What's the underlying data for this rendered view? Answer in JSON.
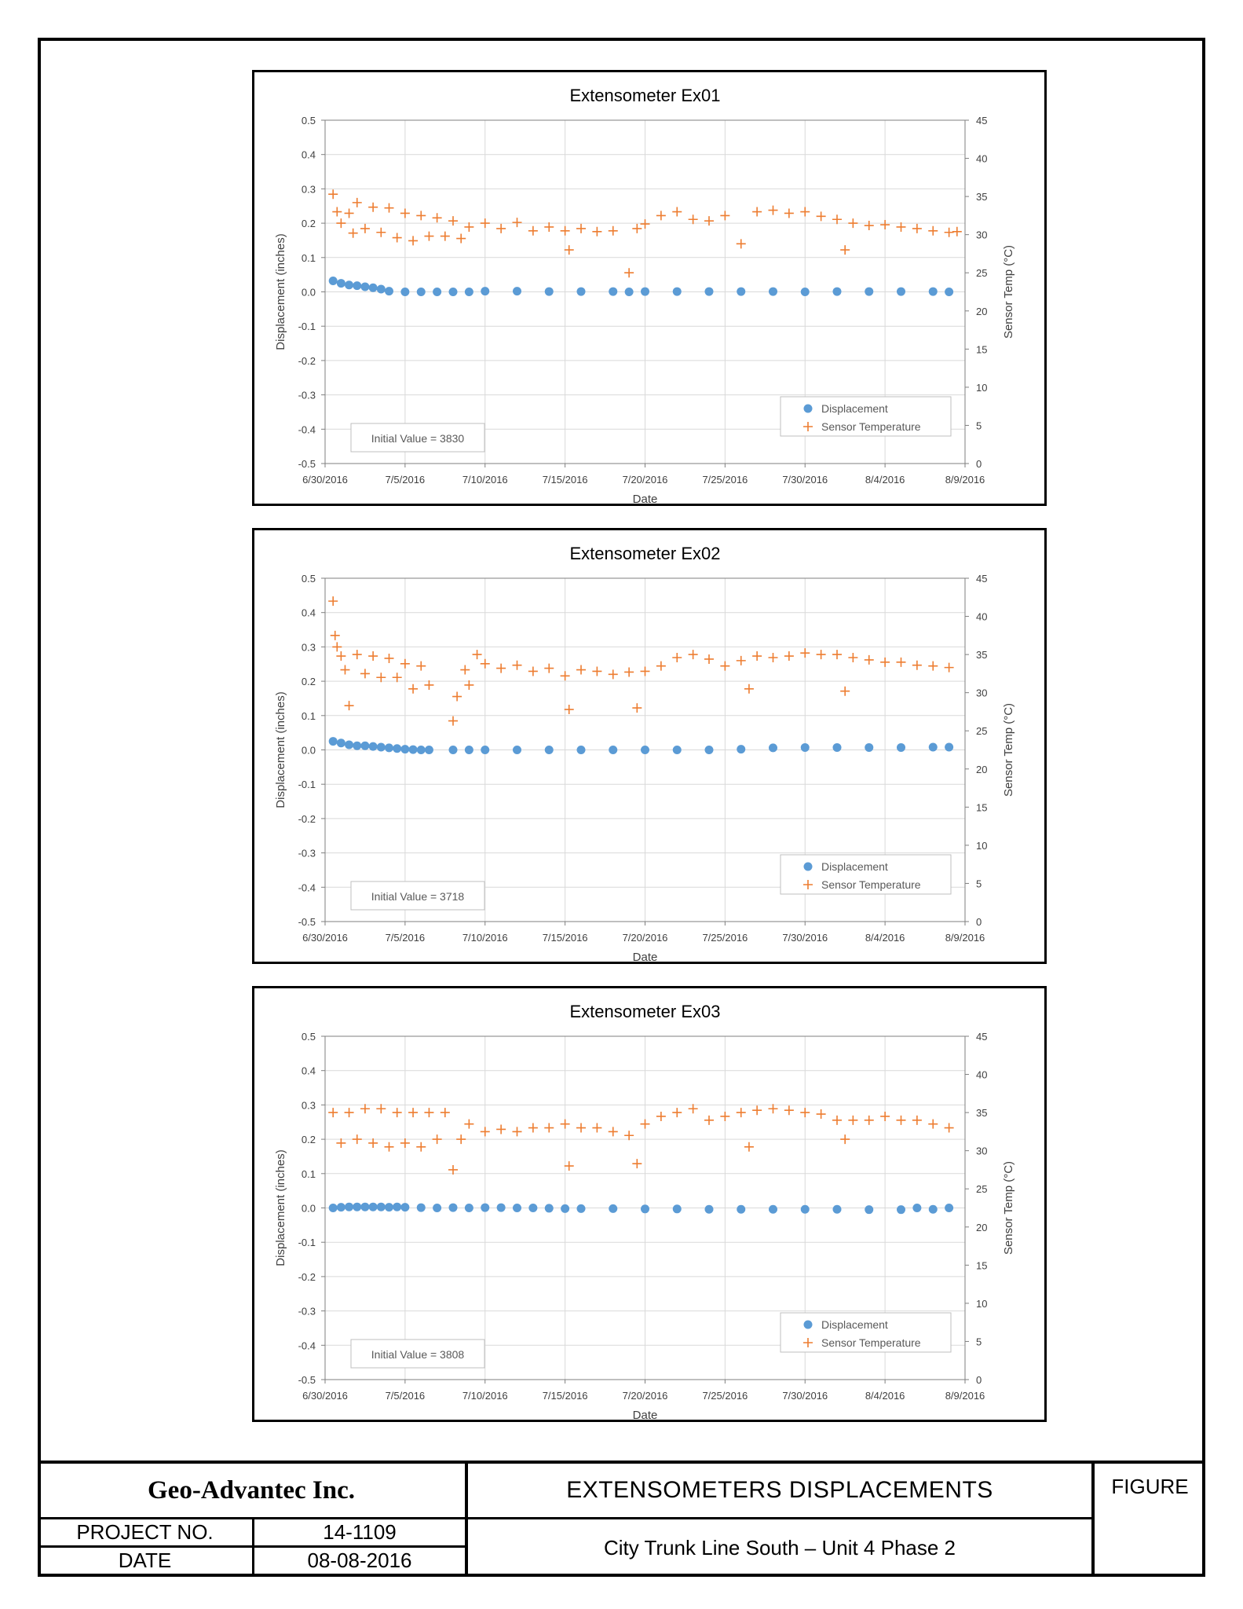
{
  "page": {
    "company": "Geo-Advantec Inc.",
    "project_no_label": "PROJECT NO.",
    "project_no": "14-1109",
    "date_label": "DATE",
    "date": "08-08-2016",
    "drawing_title": "EXTENSOMETERS DISPLACEMENTS",
    "figure_label": "FIGURE",
    "subtitle": "City Trunk Line South – Unit 4 Phase 2"
  },
  "colors": {
    "displacement": "#5B9BD5",
    "temperature": "#ED7D31",
    "grid": "#D9D9D9",
    "axis": "#7F7F7F"
  },
  "chart_data": [
    {
      "type": "scatter",
      "title": "Extensometer Ex01",
      "xlabel": "Date",
      "ylabel": "Displacement (inches)",
      "y2label": "Sensor Temp (°C)",
      "x_ticks": [
        "6/30/2016",
        "7/5/2016",
        "7/10/2016",
        "7/15/2016",
        "7/20/2016",
        "7/25/2016",
        "7/30/2016",
        "8/4/2016",
        "8/9/2016"
      ],
      "xlim": [
        "6/30/2016",
        "8/9/2016"
      ],
      "ylim": [
        -0.5,
        0.5
      ],
      "y_ticks": [
        "0.5",
        "0.4",
        "0.3",
        "0.2",
        "0.1",
        "0.0",
        "-0.1",
        "-0.2",
        "-0.3",
        "-0.4",
        "-0.5"
      ],
      "y2lim": [
        0,
        45
      ],
      "y2_ticks": [
        "45",
        "40",
        "35",
        "30",
        "25",
        "20",
        "15",
        "10",
        "5",
        "0"
      ],
      "grid": true,
      "legend_position": "bottom-right",
      "annotation": "Initial Value = 3830",
      "series": [
        {
          "name": "Displacement",
          "axis": "left",
          "marker": "circle",
          "x": [
            "6/30/2016 12:00",
            "7/1/2016 00:00",
            "7/1/2016 12:00",
            "7/2/2016",
            "7/2/2016 12:00",
            "7/3/2016",
            "7/3/2016 12:00",
            "7/4/2016",
            "7/5/2016",
            "7/6/2016",
            "7/7/2016",
            "7/8/2016",
            "7/9/2016",
            "7/10/2016",
            "7/12/2016",
            "7/14/2016",
            "7/16/2016",
            "7/18/2016",
            "7/19/2016",
            "7/20/2016",
            "7/22/2016",
            "7/24/2016",
            "7/26/2016",
            "7/28/2016",
            "7/30/2016",
            "8/1/2016",
            "8/3/2016",
            "8/5/2016",
            "8/7/2016",
            "8/8/2016"
          ],
          "y": [
            0.032,
            0.025,
            0.02,
            0.018,
            0.015,
            0.012,
            0.008,
            0.002,
            0.0,
            0.0,
            0.0,
            0.0,
            0.0,
            0.002,
            0.002,
            0.001,
            0.001,
            0.001,
            0.0,
            0.001,
            0.001,
            0.001,
            0.001,
            0.001,
            0.0,
            0.001,
            0.001,
            0.001,
            0.001,
            0.0
          ]
        },
        {
          "name": "Sensor Temperature",
          "axis": "right",
          "marker": "plus",
          "x": [
            "6/30/2016 12:00",
            "6/30/2016 18:00",
            "7/1/2016 00:00",
            "7/1/2016 12:00",
            "7/1/2016 18:00",
            "7/2/2016",
            "7/2/2016 12:00",
            "7/3/2016",
            "7/3/2016 12:00",
            "7/4/2016",
            "7/4/2016 12:00",
            "7/5/2016",
            "7/5/2016 12:00",
            "7/6/2016",
            "7/6/2016 12:00",
            "7/7/2016",
            "7/7/2016 12:00",
            "7/8/2016",
            "7/8/2016 12:00",
            "7/9/2016",
            "7/10/2016",
            "7/11/2016",
            "7/12/2016",
            "7/13/2016",
            "7/14/2016",
            "7/15/2016",
            "7/15/2016 06:00",
            "7/16/2016",
            "7/17/2016",
            "7/18/2016",
            "7/19/2016",
            "7/19/2016 12:00",
            "7/20/2016",
            "7/21/2016",
            "7/22/2016",
            "7/23/2016",
            "7/24/2016",
            "7/25/2016",
            "7/26/2016",
            "7/27/2016",
            "7/28/2016",
            "7/29/2016",
            "7/30/2016",
            "7/31/2016",
            "8/1/2016",
            "8/1/2016 12:00",
            "8/2/2016",
            "8/3/2016",
            "8/4/2016",
            "8/5/2016",
            "8/6/2016",
            "8/7/2016",
            "8/8/2016",
            "8/8/2016 12:00"
          ],
          "y": [
            35.3,
            33.0,
            31.5,
            32.8,
            30.2,
            34.2,
            30.8,
            33.6,
            30.3,
            33.5,
            29.6,
            32.8,
            29.2,
            32.5,
            29.8,
            32.2,
            29.8,
            31.8,
            29.5,
            31.0,
            31.5,
            30.8,
            31.6,
            30.5,
            31.0,
            30.5,
            28.0,
            30.8,
            30.4,
            30.5,
            25.0,
            30.8,
            31.4,
            32.5,
            33.0,
            32.0,
            31.8,
            32.5,
            28.8,
            33.0,
            33.2,
            32.8,
            33.0,
            32.4,
            32.0,
            28.0,
            31.5,
            31.2,
            31.3,
            31.0,
            30.8,
            30.5,
            30.3,
            30.4
          ]
        }
      ]
    },
    {
      "type": "scatter",
      "title": "Extensometer Ex02",
      "xlabel": "Date",
      "ylabel": "Displacement (inches)",
      "y2label": "Sensor Temp (°C)",
      "x_ticks": [
        "6/30/2016",
        "7/5/2016",
        "7/10/2016",
        "7/15/2016",
        "7/20/2016",
        "7/25/2016",
        "7/30/2016",
        "8/4/2016",
        "8/9/2016"
      ],
      "xlim": [
        "6/30/2016",
        "8/9/2016"
      ],
      "ylim": [
        -0.5,
        0.5
      ],
      "y_ticks": [
        "0.5",
        "0.4",
        "0.3",
        "0.2",
        "0.1",
        "0.0",
        "-0.1",
        "-0.2",
        "-0.3",
        "-0.4",
        "-0.5"
      ],
      "y2lim": [
        0,
        45
      ],
      "y2_ticks": [
        "45",
        "40",
        "35",
        "30",
        "25",
        "20",
        "15",
        "10",
        "5",
        "0"
      ],
      "grid": true,
      "legend_position": "bottom-right",
      "annotation": "Initial Value = 3718",
      "series": [
        {
          "name": "Displacement",
          "axis": "left",
          "marker": "circle",
          "x": [
            "6/30/2016 12:00",
            "7/1/2016",
            "7/1/2016 12:00",
            "7/2/2016",
            "7/2/2016 12:00",
            "7/3/2016",
            "7/3/2016 12:00",
            "7/4/2016",
            "7/4/2016 12:00",
            "7/5/2016",
            "7/5/2016 12:00",
            "7/6/2016",
            "7/6/2016 12:00",
            "7/8/2016",
            "7/9/2016",
            "7/10/2016",
            "7/12/2016",
            "7/14/2016",
            "7/16/2016",
            "7/18/2016",
            "7/20/2016",
            "7/22/2016",
            "7/24/2016",
            "7/26/2016",
            "7/28/2016",
            "7/30/2016",
            "8/1/2016",
            "8/3/2016",
            "8/5/2016",
            "8/7/2016",
            "8/8/2016"
          ],
          "y": [
            0.025,
            0.02,
            0.015,
            0.012,
            0.012,
            0.01,
            0.008,
            0.006,
            0.004,
            0.002,
            0.001,
            0.0,
            0.0,
            0.0,
            0.0,
            0.0,
            0.0,
            0.0,
            0.0,
            0.0,
            0.0,
            0.0,
            0.0,
            0.002,
            0.006,
            0.007,
            0.007,
            0.007,
            0.007,
            0.008,
            0.008
          ]
        },
        {
          "name": "Sensor Temperature",
          "axis": "right",
          "marker": "plus",
          "x": [
            "6/30/2016 12:00",
            "6/30/2016 15:00",
            "6/30/2016 18:00",
            "7/1/2016",
            "7/1/2016 06:00",
            "7/1/2016 12:00",
            "7/2/2016",
            "7/2/2016 12:00",
            "7/3/2016",
            "7/3/2016 12:00",
            "7/4/2016",
            "7/4/2016 12:00",
            "7/5/2016",
            "7/5/2016 12:00",
            "7/6/2016",
            "7/6/2016 12:00",
            "7/8/2016",
            "7/8/2016 06:00",
            "7/8/2016 18:00",
            "7/9/2016",
            "7/9/2016 12:00",
            "7/10/2016",
            "7/11/2016",
            "7/12/2016",
            "7/13/2016",
            "7/14/2016",
            "7/15/2016",
            "7/15/2016 06:00",
            "7/16/2016",
            "7/17/2016",
            "7/18/2016",
            "7/19/2016",
            "7/19/2016 12:00",
            "7/20/2016",
            "7/21/2016",
            "7/22/2016",
            "7/23/2016",
            "7/24/2016",
            "7/25/2016",
            "7/26/2016",
            "7/26/2016 12:00",
            "7/27/2016",
            "7/28/2016",
            "7/29/2016",
            "7/30/2016",
            "7/31/2016",
            "8/1/2016",
            "8/1/2016 12:00",
            "8/2/2016",
            "8/3/2016",
            "8/4/2016",
            "8/5/2016",
            "8/6/2016",
            "8/7/2016",
            "8/8/2016"
          ],
          "y": [
            42.0,
            37.5,
            36.0,
            34.8,
            33.0,
            28.3,
            35.0,
            32.5,
            34.8,
            32.0,
            34.5,
            32.0,
            33.8,
            30.5,
            33.5,
            31.0,
            26.3,
            29.5,
            33.0,
            31.0,
            35.0,
            33.8,
            33.2,
            33.6,
            32.8,
            33.2,
            32.2,
            27.8,
            33.0,
            32.8,
            32.4,
            32.7,
            28.0,
            32.8,
            33.5,
            34.6,
            35.0,
            34.4,
            33.5,
            34.2,
            30.5,
            34.8,
            34.6,
            34.8,
            35.2,
            35.0,
            35.0,
            30.2,
            34.6,
            34.3,
            34.0,
            34.0,
            33.6,
            33.5,
            33.3
          ]
        }
      ]
    },
    {
      "type": "scatter",
      "title": "Extensometer Ex03",
      "xlabel": "Date",
      "ylabel": "Displacement (inches)",
      "y2label": "Sensor Temp (°C)",
      "x_ticks": [
        "6/30/2016",
        "7/5/2016",
        "7/10/2016",
        "7/15/2016",
        "7/20/2016",
        "7/25/2016",
        "7/30/2016",
        "8/4/2016",
        "8/9/2016"
      ],
      "xlim": [
        "6/30/2016",
        "8/9/2016"
      ],
      "ylim": [
        -0.5,
        0.5
      ],
      "y_ticks": [
        "0.5",
        "0.4",
        "0.3",
        "0.2",
        "0.1",
        "0.0",
        "-0.1",
        "-0.2",
        "-0.3",
        "-0.4",
        "-0.5"
      ],
      "y2lim": [
        0,
        45
      ],
      "y2_ticks": [
        "45",
        "40",
        "35",
        "30",
        "25",
        "20",
        "15",
        "10",
        "5",
        "0"
      ],
      "grid": true,
      "legend_position": "bottom-right",
      "annotation": "Initial Value = 3808",
      "series": [
        {
          "name": "Displacement",
          "axis": "left",
          "marker": "circle",
          "x": [
            "6/30/2016 12:00",
            "7/1/2016",
            "7/1/2016 12:00",
            "7/2/2016",
            "7/2/2016 12:00",
            "7/3/2016",
            "7/3/2016 12:00",
            "7/4/2016",
            "7/4/2016 12:00",
            "7/5/2016",
            "7/6/2016",
            "7/7/2016",
            "7/8/2016",
            "7/9/2016",
            "7/10/2016",
            "7/11/2016",
            "7/12/2016",
            "7/13/2016",
            "7/14/2016",
            "7/15/2016",
            "7/16/2016",
            "7/18/2016",
            "7/20/2016",
            "7/22/2016",
            "7/24/2016",
            "7/26/2016",
            "7/28/2016",
            "7/30/2016",
            "8/1/2016",
            "8/3/2016",
            "8/5/2016",
            "8/6/2016",
            "8/7/2016",
            "8/8/2016"
          ],
          "y": [
            0.0,
            0.002,
            0.003,
            0.003,
            0.003,
            0.003,
            0.003,
            0.002,
            0.003,
            0.002,
            0.001,
            0.0,
            0.001,
            0.0,
            0.001,
            0.001,
            0.0,
            0.0,
            -0.001,
            -0.002,
            -0.002,
            -0.002,
            -0.003,
            -0.003,
            -0.004,
            -0.004,
            -0.004,
            -0.004,
            -0.004,
            -0.005,
            -0.005,
            0.0,
            -0.004,
            0.0
          ]
        },
        {
          "name": "Sensor Temperature",
          "axis": "right",
          "marker": "plus",
          "x": [
            "6/30/2016 12:00",
            "7/1/2016",
            "7/1/2016 12:00",
            "7/2/2016",
            "7/2/2016 12:00",
            "7/3/2016",
            "7/3/2016 12:00",
            "7/4/2016",
            "7/4/2016 12:00",
            "7/5/2016",
            "7/5/2016 12:00",
            "7/6/2016",
            "7/6/2016 12:00",
            "7/7/2016",
            "7/7/2016 12:00",
            "7/8/2016",
            "7/8/2016 12:00",
            "7/9/2016",
            "7/10/2016",
            "7/11/2016",
            "7/12/2016",
            "7/13/2016",
            "7/14/2016",
            "7/15/2016",
            "7/15/2016 06:00",
            "7/16/2016",
            "7/17/2016",
            "7/18/2016",
            "7/19/2016",
            "7/19/2016 12:00",
            "7/20/2016",
            "7/21/2016",
            "7/22/2016",
            "7/23/2016",
            "7/24/2016",
            "7/25/2016",
            "7/26/2016",
            "7/26/2016 12:00",
            "7/27/2016",
            "7/28/2016",
            "7/29/2016",
            "7/30/2016",
            "7/31/2016",
            "8/1/2016",
            "8/1/2016 12:00",
            "8/2/2016",
            "8/3/2016",
            "8/4/2016",
            "8/5/2016",
            "8/6/2016",
            "8/7/2016",
            "8/8/2016"
          ],
          "y": [
            35.0,
            31.0,
            35.0,
            31.5,
            35.5,
            31.0,
            35.5,
            30.5,
            35.0,
            31.0,
            35.0,
            30.5,
            35.0,
            31.5,
            35.0,
            27.5,
            31.5,
            33.5,
            32.5,
            32.8,
            32.5,
            33.0,
            33.0,
            33.5,
            28.0,
            33.0,
            33.0,
            32.5,
            32.0,
            28.3,
            33.5,
            34.5,
            35.0,
            35.5,
            34.0,
            34.5,
            35.0,
            30.5,
            35.3,
            35.5,
            35.3,
            35.0,
            34.8,
            34.0,
            31.5,
            34.0,
            34.0,
            34.5,
            34.0,
            34.0,
            33.5,
            33.0
          ]
        }
      ]
    }
  ]
}
